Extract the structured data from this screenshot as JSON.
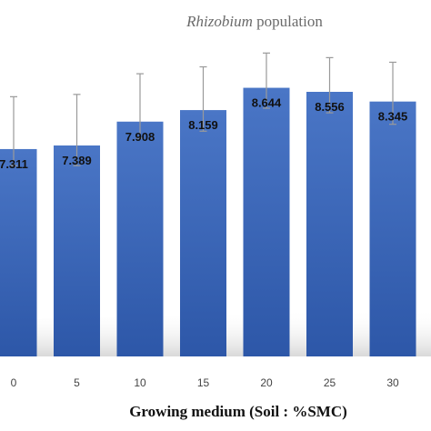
{
  "chart_data": {
    "type": "bar",
    "title_italic": "Rhizobium",
    "title_rest": " population",
    "xlabel": "Growing medium (Soil : %SMC)",
    "ylabel": "",
    "categories": [
      "0",
      "5",
      "10",
      "15",
      "20",
      "25",
      "30"
    ],
    "values": [
      7.311,
      7.389,
      7.908,
      8.159,
      8.644,
      8.556,
      8.345
    ],
    "value_labels": [
      "7.311",
      "7.389",
      "7.908",
      "8.159",
      "8.644",
      "8.556",
      "8.345"
    ],
    "error_low": [
      6.95,
      6.95,
      7.55,
      7.7,
      8.2,
      8.1,
      7.85
    ],
    "error_high": [
      8.45,
      8.5,
      8.95,
      9.1,
      9.4,
      9.3,
      9.2
    ],
    "ylim": [
      2.8,
      10.0
    ],
    "grid": false,
    "legend": "none",
    "colors": {
      "bar_top": "#4a76c6",
      "bar_bottom": "#2d57a8",
      "error_bar": "#9a9a9a",
      "shadow": "#d9d9d9"
    }
  }
}
